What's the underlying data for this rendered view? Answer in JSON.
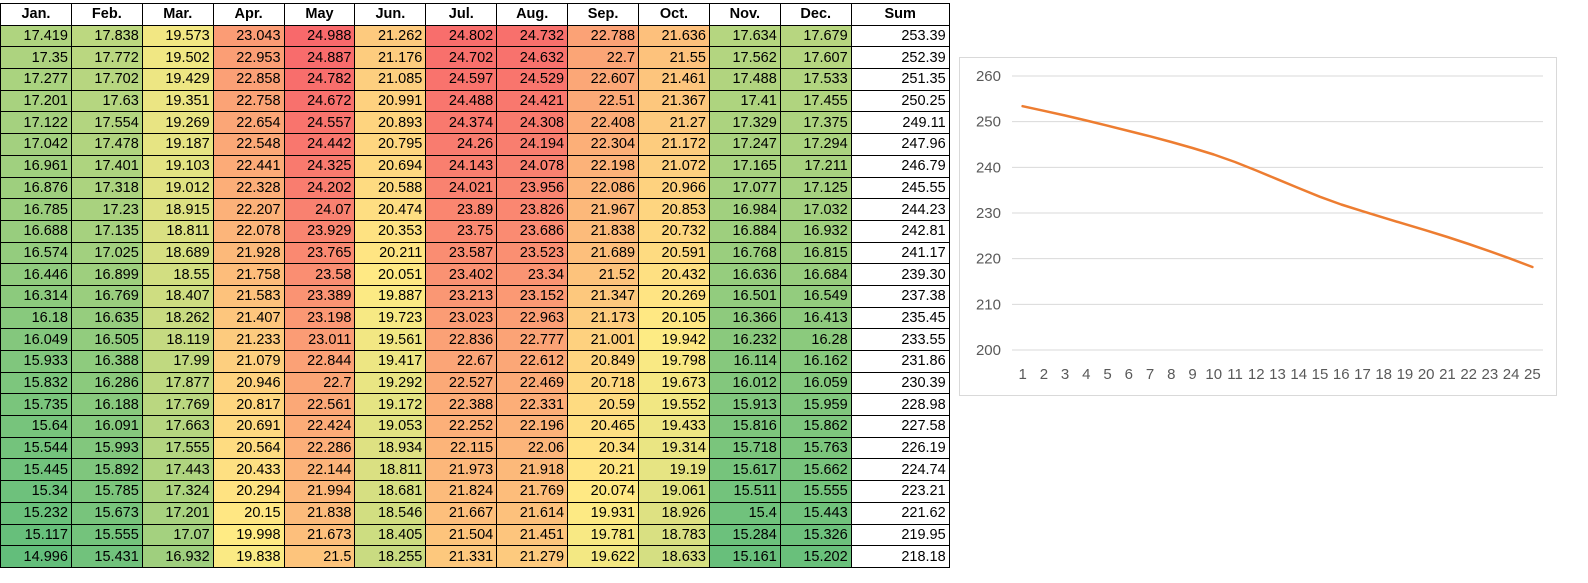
{
  "table": {
    "headers": [
      "Jan.",
      "Feb.",
      "Mar.",
      "Apr.",
      "May",
      "Jun.",
      "Jul.",
      "Aug.",
      "Sep.",
      "Oct.",
      "Nov.",
      "Dec.",
      "Sum"
    ],
    "rows": [
      [
        "17.419",
        "17.838",
        "19.573",
        "23.043",
        "24.988",
        "21.262",
        "24.802",
        "24.732",
        "22.788",
        "21.636",
        "17.634",
        "17.679",
        "253.39"
      ],
      [
        "17.35",
        "17.772",
        "19.502",
        "22.953",
        "24.887",
        "21.176",
        "24.702",
        "24.632",
        "22.7",
        "21.55",
        "17.562",
        "17.607",
        "252.39"
      ],
      [
        "17.277",
        "17.702",
        "19.429",
        "22.858",
        "24.782",
        "21.085",
        "24.597",
        "24.529",
        "22.607",
        "21.461",
        "17.488",
        "17.533",
        "251.35"
      ],
      [
        "17.201",
        "17.63",
        "19.351",
        "22.758",
        "24.672",
        "20.991",
        "24.488",
        "24.421",
        "22.51",
        "21.367",
        "17.41",
        "17.455",
        "250.25"
      ],
      [
        "17.122",
        "17.554",
        "19.269",
        "22.654",
        "24.557",
        "20.893",
        "24.374",
        "24.308",
        "22.408",
        "21.27",
        "17.329",
        "17.375",
        "249.11"
      ],
      [
        "17.042",
        "17.478",
        "19.187",
        "22.548",
        "24.442",
        "20.795",
        "24.26",
        "24.194",
        "22.304",
        "21.172",
        "17.247",
        "17.294",
        "247.96"
      ],
      [
        "16.961",
        "17.401",
        "19.103",
        "22.441",
        "24.325",
        "20.694",
        "24.143",
        "24.078",
        "22.198",
        "21.072",
        "17.165",
        "17.211",
        "246.79"
      ],
      [
        "16.876",
        "17.318",
        "19.012",
        "22.328",
        "24.202",
        "20.588",
        "24.021",
        "23.956",
        "22.086",
        "20.966",
        "17.077",
        "17.125",
        "245.55"
      ],
      [
        "16.785",
        "17.23",
        "18.915",
        "22.207",
        "24.07",
        "20.474",
        "23.89",
        "23.826",
        "21.967",
        "20.853",
        "16.984",
        "17.032",
        "244.23"
      ],
      [
        "16.688",
        "17.135",
        "18.811",
        "22.078",
        "23.929",
        "20.353",
        "23.75",
        "23.686",
        "21.838",
        "20.732",
        "16.884",
        "16.932",
        "242.81"
      ],
      [
        "16.574",
        "17.025",
        "18.689",
        "21.928",
        "23.765",
        "20.211",
        "23.587",
        "23.523",
        "21.689",
        "20.591",
        "16.768",
        "16.815",
        "241.17"
      ],
      [
        "16.446",
        "16.899",
        "18.55",
        "21.758",
        "23.58",
        "20.051",
        "23.402",
        "23.34",
        "21.52",
        "20.432",
        "16.636",
        "16.684",
        "239.30"
      ],
      [
        "16.314",
        "16.769",
        "18.407",
        "21.583",
        "23.389",
        "19.887",
        "23.213",
        "23.152",
        "21.347",
        "20.269",
        "16.501",
        "16.549",
        "237.38"
      ],
      [
        "16.18",
        "16.635",
        "18.262",
        "21.407",
        "23.198",
        "19.723",
        "23.023",
        "22.963",
        "21.173",
        "20.105",
        "16.366",
        "16.413",
        "235.45"
      ],
      [
        "16.049",
        "16.505",
        "18.119",
        "21.233",
        "23.011",
        "19.561",
        "22.836",
        "22.777",
        "21.001",
        "19.942",
        "16.232",
        "16.28",
        "233.55"
      ],
      [
        "15.933",
        "16.388",
        "17.99",
        "21.079",
        "22.844",
        "19.417",
        "22.67",
        "22.612",
        "20.849",
        "19.798",
        "16.114",
        "16.162",
        "231.86"
      ],
      [
        "15.832",
        "16.286",
        "17.877",
        "20.946",
        "22.7",
        "19.292",
        "22.527",
        "22.469",
        "20.718",
        "19.673",
        "16.012",
        "16.059",
        "230.39"
      ],
      [
        "15.735",
        "16.188",
        "17.769",
        "20.817",
        "22.561",
        "19.172",
        "22.388",
        "22.331",
        "20.59",
        "19.552",
        "15.913",
        "15.959",
        "228.98"
      ],
      [
        "15.64",
        "16.091",
        "17.663",
        "20.691",
        "22.424",
        "19.053",
        "22.252",
        "22.196",
        "20.465",
        "19.433",
        "15.816",
        "15.862",
        "227.58"
      ],
      [
        "15.544",
        "15.993",
        "17.555",
        "20.564",
        "22.286",
        "18.934",
        "22.115",
        "22.06",
        "20.34",
        "19.314",
        "15.718",
        "15.763",
        "226.19"
      ],
      [
        "15.445",
        "15.892",
        "17.443",
        "20.433",
        "22.144",
        "18.811",
        "21.973",
        "21.918",
        "20.21",
        "19.19",
        "15.617",
        "15.662",
        "224.74"
      ],
      [
        "15.34",
        "15.785",
        "17.324",
        "20.294",
        "21.994",
        "18.681",
        "21.824",
        "21.769",
        "20.074",
        "19.061",
        "15.511",
        "15.555",
        "223.21"
      ],
      [
        "15.232",
        "15.673",
        "17.201",
        "20.15",
        "21.838",
        "18.546",
        "21.667",
        "21.614",
        "19.931",
        "18.926",
        "15.4",
        "15.443",
        "221.62"
      ],
      [
        "15.117",
        "15.555",
        "17.07",
        "19.998",
        "21.673",
        "18.405",
        "21.504",
        "21.451",
        "19.781",
        "18.783",
        "15.284",
        "15.326",
        "219.95"
      ],
      [
        "14.996",
        "15.431",
        "16.932",
        "19.838",
        "21.5",
        "18.255",
        "21.331",
        "21.279",
        "19.622",
        "18.633",
        "15.161",
        "15.202",
        "218.18"
      ]
    ]
  },
  "colors": {
    "scale_low": "#63be7b",
    "scale_mid": "#ffeb84",
    "scale_high": "#f8696b",
    "line": "#ed7d31",
    "grid": "#d9d9d9",
    "tick_text": "#595959"
  },
  "chart_data": {
    "type": "line",
    "title": "",
    "xlabel": "",
    "ylabel": "",
    "x": [
      1,
      2,
      3,
      4,
      5,
      6,
      7,
      8,
      9,
      10,
      11,
      12,
      13,
      14,
      15,
      16,
      17,
      18,
      19,
      20,
      21,
      22,
      23,
      24,
      25
    ],
    "series": [
      {
        "values": [
          253.39,
          252.39,
          251.35,
          250.25,
          249.11,
          247.96,
          246.79,
          245.55,
          244.23,
          242.81,
          241.17,
          239.3,
          237.38,
          235.45,
          233.55,
          231.86,
          230.39,
          228.98,
          227.58,
          226.19,
          224.74,
          223.21,
          221.62,
          219.95,
          218.18
        ]
      }
    ],
    "ylim": [
      200,
      260
    ],
    "yticks": [
      200,
      210,
      220,
      230,
      240,
      250,
      260
    ],
    "grid": true,
    "legend": "none"
  }
}
